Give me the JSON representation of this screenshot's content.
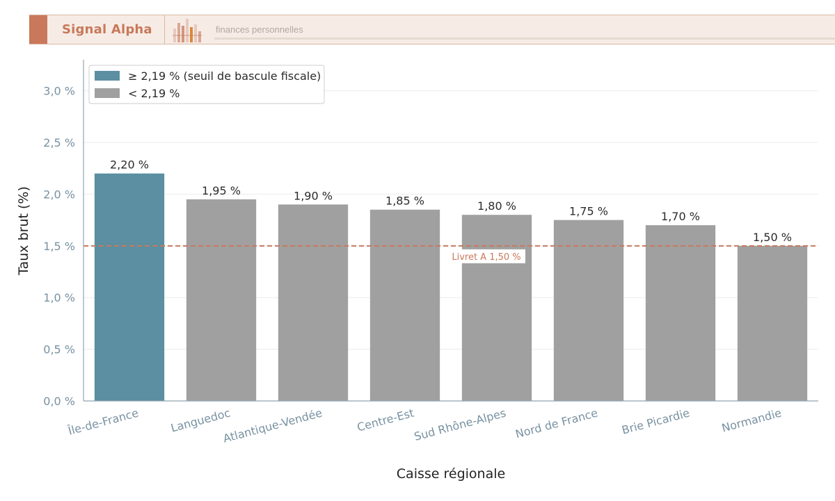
{
  "header": {
    "brand": "Signal Alpha",
    "tagline": "finances personnelles",
    "logo_icon": "bar-chart-logo-icon",
    "accent_color": "#c9785b"
  },
  "chart_data": {
    "type": "bar",
    "title": "",
    "xlabel": "Caisse régionale",
    "ylabel": "Taux brut (%)",
    "ylim": [
      0,
      3.3
    ],
    "yticks": [
      {
        "value": 0.0,
        "label": "0,0 %"
      },
      {
        "value": 0.5,
        "label": "0,5 %"
      },
      {
        "value": 1.0,
        "label": "1,0 %"
      },
      {
        "value": 1.5,
        "label": "1,5 %"
      },
      {
        "value": 2.0,
        "label": "2,0 %"
      },
      {
        "value": 2.5,
        "label": "2,5 %"
      },
      {
        "value": 3.0,
        "label": "3,0 %"
      }
    ],
    "categories": [
      "Île-de-France",
      "Languedoc",
      "Atlantique-Vendée",
      "Centre-Est",
      "Sud Rhône-Alpes",
      "Nord de France",
      "Brie Picardie",
      "Normandie"
    ],
    "values": [
      2.2,
      1.95,
      1.9,
      1.85,
      1.8,
      1.75,
      1.7,
      1.5
    ],
    "value_labels": [
      "2,20 %",
      "1,95 %",
      "1,90 %",
      "1,85 %",
      "1,80 %",
      "1,75 %",
      "1,70 %",
      "1,50 %"
    ],
    "threshold": 2.19,
    "colors": {
      "above": "#5b8fa1",
      "below": "#a0a0a0",
      "reference": "#c9785b"
    },
    "legend": {
      "placement": "top-left",
      "entries": [
        {
          "label": "≥ 2,19 % (seuil de bascule fiscale)",
          "color": "#5b8fa1"
        },
        {
          "label": "< 2,19 %",
          "color": "#a0a0a0"
        }
      ]
    },
    "reference_line": {
      "value": 1.5,
      "label": "Livret A 1,50 %",
      "style": "dashed"
    },
    "grid": "horizontal"
  }
}
